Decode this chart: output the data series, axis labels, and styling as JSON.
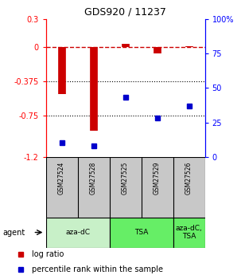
{
  "title": "GDS920 / 11237",
  "samples": [
    "GSM27524",
    "GSM27528",
    "GSM27525",
    "GSM27529",
    "GSM27526"
  ],
  "log_ratio": [
    -0.52,
    -0.92,
    0.03,
    -0.07,
    0.01
  ],
  "percentile_rank": [
    10,
    8,
    43,
    28,
    37
  ],
  "ylim_left": [
    -1.2,
    0.3
  ],
  "ylim_right": [
    0,
    100
  ],
  "yticks_left": [
    0.3,
    0,
    -0.375,
    -0.75,
    -1.2
  ],
  "yticks_right": [
    100,
    75,
    50,
    25,
    0
  ],
  "hlines": [
    -0.375,
    -0.75
  ],
  "dashed_hline": 0,
  "agent_groups": [
    {
      "label": "aza-dC",
      "start": 0,
      "end": 1,
      "color": "#c8f0c8"
    },
    {
      "label": "TSA",
      "start": 2,
      "end": 3,
      "color": "#66dd66"
    },
    {
      "label": "aza-dC,\nTSA",
      "start": 4,
      "end": 4,
      "color": "#66dd66"
    }
  ],
  "bar_color": "#cc0000",
  "marker_color": "#0000cc",
  "sample_box_color": "#c8c8c8",
  "legend_items": [
    {
      "label": "log ratio",
      "color": "#cc0000"
    },
    {
      "label": "percentile rank within the sample",
      "color": "#0000cc"
    }
  ],
  "fig_width": 3.03,
  "fig_height": 3.45,
  "dpi": 100
}
